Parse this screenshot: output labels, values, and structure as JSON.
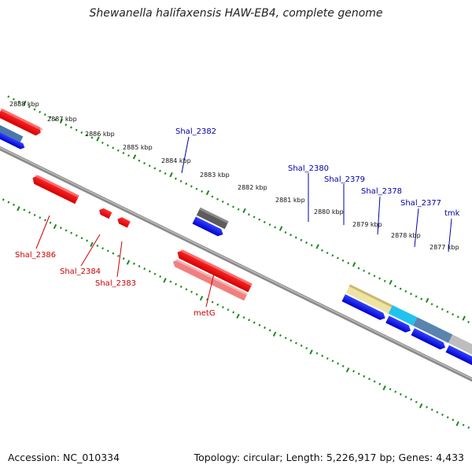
{
  "title": "Shewanella halifaxensis HAW-EB4, complete genome",
  "footer": {
    "accession": "Accession: NC_010334",
    "summary": "Topology: circular; Length: 5,226,917 bp; Genes: 4,433"
  },
  "colors": {
    "forward_label": "#0000aa",
    "reverse_label": "#cc0000",
    "tick_green": "#1a8a1a",
    "backbone": "#888888"
  },
  "kbp_labels": [
    "2888 kbp",
    "2887 kbp",
    "2886 kbp",
    "2885 kbp",
    "2884 kbp",
    "2883 kbp",
    "2882 kbp",
    "2881 kbp",
    "2880 kbp",
    "2879 kbp",
    "2878 kbp",
    "2877 kbp"
  ],
  "forward_genes": [
    "Shal_2382",
    "Shal_2380",
    "Shal_2379",
    "Shal_2378",
    "Shal_2377",
    "tmk"
  ],
  "reverse_genes": [
    "Shal_2386",
    "Shal_2384",
    "Shal_2383",
    "metG"
  ]
}
